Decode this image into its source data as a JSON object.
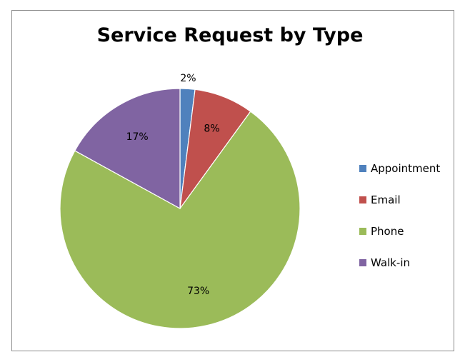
{
  "chart_data": {
    "type": "pie",
    "title": "Service Request by Type",
    "categories": [
      "Appointment",
      "Email",
      "Phone",
      "Walk-in"
    ],
    "values": [
      2,
      8,
      73,
      17
    ],
    "data_labels": [
      "2%",
      "8%",
      "73%",
      "17%"
    ],
    "colors": [
      "#4F81BD",
      "#C0504D",
      "#9BBB59",
      "#8064A2"
    ],
    "legend_position": "right",
    "start_angle": "12 o'clock, clockwise"
  }
}
